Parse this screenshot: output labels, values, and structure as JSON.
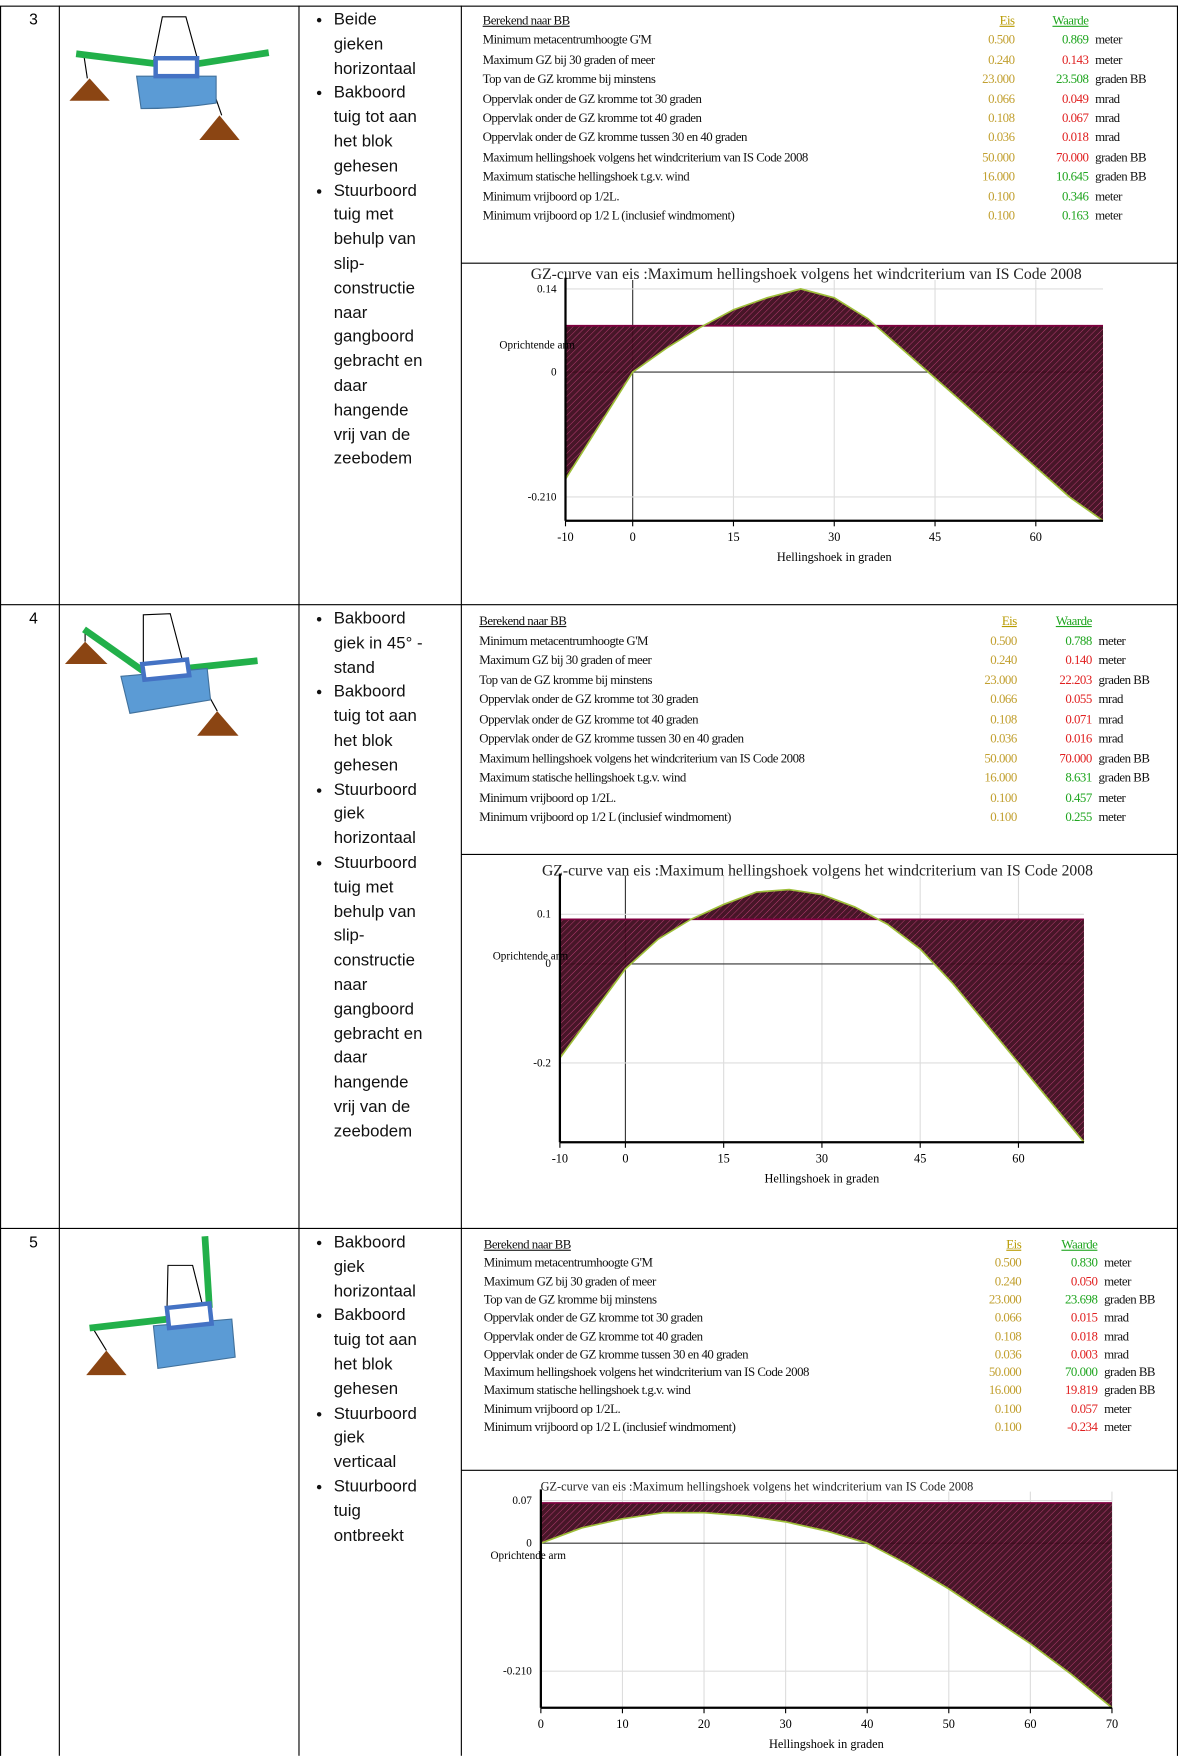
{
  "rows": [
    {
      "number": "3",
      "bullets": [
        "Beide gieken horizontaal",
        "Bakboord tuig tot aan het blok gehesen",
        "Stuurboord tuig met behulp van slip-constructie naar gangboord gebracht en daar hangende vrij van de zeebodem"
      ],
      "table": {
        "header": {
          "name": "Berekend naar BB",
          "eis": "Eis",
          "waarde": "Waarde"
        },
        "rows": [
          {
            "name": "Minimum metacentrumhoogte G'M",
            "eis": "0.500",
            "waarde": "0.869",
            "unit": "meter",
            "color": "#1fa51f"
          },
          {
            "name": "Maximum GZ bij 30 graden of meer",
            "eis": "0.240",
            "waarde": "0.143",
            "unit": "meter",
            "color": "#e02020"
          },
          {
            "name": "Top van de GZ kromme bij minstens",
            "eis": "23.000",
            "waarde": "23.508",
            "unit": "graden BB",
            "color": "#1fa51f"
          },
          {
            "name": "Oppervlak onder de GZ kromme tot 30 graden",
            "eis": "0.066",
            "waarde": "0.049",
            "unit": "mrad",
            "color": "#e02020"
          },
          {
            "name": "Oppervlak onder de GZ kromme tot 40 graden",
            "eis": "0.108",
            "waarde": "0.067",
            "unit": "mrad",
            "color": "#e02020"
          },
          {
            "name": "Oppervlak onder de GZ kromme tussen 30 en 40 graden",
            "eis": "0.036",
            "waarde": "0.018",
            "unit": "mrad",
            "color": "#e02020"
          },
          {
            "name": "Maximum hellingshoek volgens het windcriterium van IS Code 2008",
            "eis": "50.000",
            "waarde": "70.000",
            "unit": "graden BB",
            "color": "#e02020"
          },
          {
            "name": "Maximum statische hellingshoek t.g.v. wind",
            "eis": "16.000",
            "waarde": "10.645",
            "unit": "graden BB",
            "color": "#1fa51f"
          },
          {
            "name": "Minimum vrijboord op 1/2L.",
            "eis": "0.100",
            "waarde": "0.346",
            "unit": "meter",
            "color": "#1fa51f"
          },
          {
            "name": "Minimum vrijboord op 1/2 L (inclusief windmoment)",
            "eis": "0.100",
            "waarde": "0.163",
            "unit": "meter",
            "color": "#1fa51f"
          }
        ]
      },
      "chart": {
        "type": "line",
        "title": "GZ-curve van eis :Maximum hellingshoek volgens het windcriterium van IS Code 2008",
        "xlabel": "Hellingshoek in graden",
        "ylabel": "Oprichtende arm",
        "xlim": [
          -10,
          70
        ],
        "ylim": [
          -0.25,
          0.14
        ],
        "xticks": [
          -10,
          0,
          15,
          30,
          45,
          60
        ],
        "yticks": [
          0.14,
          0,
          {
            "value": -0.21,
            "label": "-0.210"
          }
        ],
        "x": [
          -10,
          -5,
          0,
          5,
          10,
          15,
          20,
          25,
          30,
          35,
          40,
          45,
          50,
          55,
          60,
          65,
          70
        ],
        "values": [
          -0.18,
          -0.09,
          0,
          0.04,
          0.075,
          0.105,
          0.125,
          0.14,
          0.125,
          0.09,
          0.04,
          -0.01,
          -0.06,
          -0.11,
          -0.16,
          -0.21,
          -0.25
        ],
        "heel_arm": 0.078,
        "color": "#9fbf3a",
        "fill": "#3d0a1c",
        "grid": true
      }
    },
    {
      "number": "4",
      "bullets": [
        "Bakboord giek in 45° -stand",
        "Bakboord tuig tot aan het blok gehesen",
        "Stuurboord giek horizontaal",
        "Stuurboord tuig met"
      ],
      "continuation": "behulp van slip-constructie naar gangboord gebracht en daar hangende vrij van de zeebodem",
      "table": {
        "header": {
          "name": "Berekend naar BB",
          "eis": "Eis",
          "waarde": "Waarde"
        },
        "rows": [
          {
            "name": "Minimum metacentrumhoogte G'M",
            "eis": "0.500",
            "waarde": "0.788",
            "unit": "meter",
            "color": "#1fa51f"
          },
          {
            "name": "Maximum GZ bij 30 graden of meer",
            "eis": "0.240",
            "waarde": "0.140",
            "unit": "meter",
            "color": "#e02020"
          },
          {
            "name": "Top van de GZ kromme bij minstens",
            "eis": "23.000",
            "waarde": "22.203",
            "unit": "graden BB",
            "color": "#e02020"
          },
          {
            "name": "Oppervlak onder de GZ kromme tot 30 graden",
            "eis": "0.066",
            "waarde": "0.055",
            "unit": "mrad",
            "color": "#e02020"
          },
          {
            "name": "Oppervlak onder de GZ kromme tot 40 graden",
            "eis": "0.108",
            "waarde": "0.071",
            "unit": "mrad",
            "color": "#e02020"
          },
          {
            "name": "Oppervlak onder de GZ kromme tussen 30 en 40 graden",
            "eis": "0.036",
            "waarde": "0.016",
            "unit": "mrad",
            "color": "#e02020"
          },
          {
            "name": "Maximum hellingshoek volgens het windcriterium van IS Code 2008",
            "eis": "50.000",
            "waarde": "70.000",
            "unit": "graden BB",
            "color": "#e02020"
          },
          {
            "name": "Maximum statische hellingshoek t.g.v. wind",
            "eis": "16.000",
            "waarde": "8.631",
            "unit": "graden BB",
            "color": "#1fa51f"
          },
          {
            "name": "Minimum vrijboord op 1/2L.",
            "eis": "0.100",
            "waarde": "0.457",
            "unit": "meter",
            "color": "#1fa51f"
          },
          {
            "name": "Minimum vrijboord op 1/2 L (inclusief windmoment)",
            "eis": "0.100",
            "waarde": "0.255",
            "unit": "meter",
            "color": "#1fa51f"
          }
        ]
      },
      "chart": {
        "type": "line",
        "title": "GZ-curve van eis :Maximum hellingshoek volgens het windcriterium van IS Code 2008",
        "xlabel": "Hellingshoek in graden",
        "ylabel": "Oprichtende arm",
        "xlim": [
          -10,
          70
        ],
        "ylim": [
          -0.36,
          0.16
        ],
        "xticks": [
          -10,
          0,
          15,
          30,
          45,
          60
        ],
        "yticks": [
          0.1,
          0,
          -0.2
        ],
        "x": [
          -10,
          -5,
          0,
          5,
          10,
          15,
          20,
          25,
          30,
          35,
          40,
          45,
          50,
          55,
          60,
          65,
          70
        ],
        "values": [
          -0.19,
          -0.1,
          -0.01,
          0.05,
          0.09,
          0.12,
          0.145,
          0.15,
          0.14,
          0.115,
          0.08,
          0.03,
          -0.04,
          -0.12,
          -0.2,
          -0.28,
          -0.36
        ],
        "heel_arm": 0.09,
        "color": "#9fbf3a",
        "fill": "#3d0a1c",
        "grid": true
      }
    },
    {
      "number": "5",
      "bullets": [
        "Bakboord giek horizontaal",
        "Bakboord tuig tot aan het blok gehesen",
        "Stuurboord giek verticaal",
        "Stuurboord tuig ontbreekt"
      ],
      "table": {
        "header": {
          "name": "Berekend naar BB",
          "eis": "Eis",
          "waarde": "Waarde"
        },
        "rows": [
          {
            "name": "Minimum metacentrumhoogte G'M",
            "eis": "0.500",
            "waarde": "0.830",
            "unit": "meter",
            "color": "#1fa51f"
          },
          {
            "name": "Maximum GZ bij 30 graden of meer",
            "eis": "0.240",
            "waarde": "0.050",
            "unit": "meter",
            "color": "#e02020"
          },
          {
            "name": "Top van de GZ kromme bij minstens",
            "eis": "23.000",
            "waarde": "23.698",
            "unit": "graden BB",
            "color": "#1fa51f"
          },
          {
            "name": "Oppervlak onder de GZ kromme tot 30 graden",
            "eis": "0.066",
            "waarde": "0.015",
            "unit": "mrad",
            "color": "#e02020"
          },
          {
            "name": "Oppervlak onder de GZ kromme tot 40 graden",
            "eis": "0.108",
            "waarde": "0.018",
            "unit": "mrad",
            "color": "#e02020"
          },
          {
            "name": "Oppervlak onder de GZ kromme tussen 30 en 40 graden",
            "eis": "0.036",
            "waarde": "0.003",
            "unit": "mrad",
            "color": "#e02020"
          },
          {
            "name": "Maximum hellingshoek volgens het windcriterium van IS Code 2008",
            "eis": "50.000",
            "waarde": "70.000",
            "unit": "graden BB",
            "color": "#1fa51f"
          },
          {
            "name": "Maximum statische hellingshoek t.g.v. wind",
            "eis": "16.000",
            "waarde": "19.819",
            "unit": "graden BB",
            "color": "#e02020"
          },
          {
            "name": "Minimum vrijboord op 1/2L.",
            "eis": "0.100",
            "waarde": "0.057",
            "unit": "meter",
            "color": "#e02020"
          },
          {
            "name": "Minimum vrijboord op 1/2 L (inclusief windmoment)",
            "eis": "0.100",
            "waarde": "-0.234",
            "unit": "meter",
            "color": "#e02020"
          }
        ]
      },
      "chart": {
        "type": "line",
        "title": "GZ-curve van eis :Maximum hellingshoek volgens het windcriterium van IS Code 2008",
        "xlabel": "Hellingshoek in graden",
        "ylabel": "Oprichtende arm",
        "xlim": [
          0,
          70
        ],
        "ylim": [
          -0.27,
          0.07
        ],
        "xticks": [
          0,
          10,
          20,
          30,
          40,
          50,
          60,
          70
        ],
        "yticks": [
          0.07,
          0,
          {
            "value": -0.21,
            "label": "-0.210"
          }
        ],
        "x": [
          0,
          5,
          10,
          15,
          20,
          25,
          30,
          35,
          40,
          45,
          50,
          55,
          60,
          65,
          70
        ],
        "values": [
          0,
          0.025,
          0.04,
          0.05,
          0.05,
          0.045,
          0.035,
          0.02,
          0,
          -0.035,
          -0.075,
          -0.12,
          -0.165,
          -0.215,
          -0.27
        ],
        "heel_arm": 0.066,
        "color": "#9fbf3a",
        "fill": "#3d0a1c",
        "grid": true
      }
    }
  ]
}
